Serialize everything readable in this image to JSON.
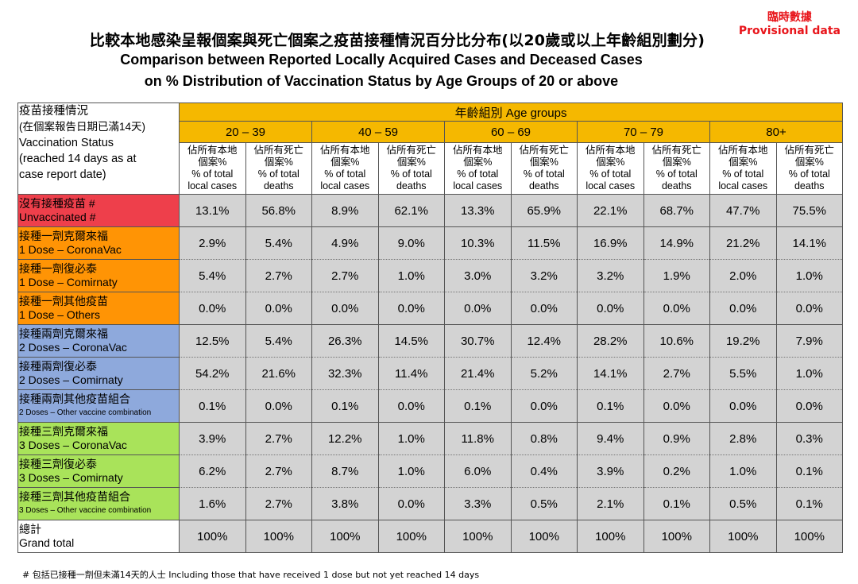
{
  "provisional": {
    "zh": "臨時數據",
    "en": "Provisional data"
  },
  "title": {
    "zh": "比較本地感染呈報個案與死亡個案之疫苗接種情況百分比分布(以20歲或以上年齡組別劃分)",
    "en1": "Comparison between Reported Locally Acquired Cases and Deceased Cases",
    "en2": "on % Distribution of Vaccination Status by Age Groups of 20 or above"
  },
  "corner": {
    "zh1": "疫苗接種情況",
    "zh2": "(在個案報告日期已滿14天)",
    "en1": "Vaccination Status",
    "en2": "(reached 14 days as at",
    "en3": "case report date)"
  },
  "age_groups_label": "年齡組別 Age groups",
  "age_groups": [
    "20 – 39",
    "40 – 59",
    "60 – 69",
    "70 – 79",
    "80+"
  ],
  "subheaders": {
    "cases": {
      "zh1": "佔所有本地",
      "zh2": "個案%",
      "en1": "% of total",
      "en2": "local cases"
    },
    "deaths": {
      "zh1": "佔所有死亡",
      "zh2": "個案%",
      "en1": "% of total",
      "en2": "deaths"
    }
  },
  "rows": [
    {
      "zh": "沒有接種疫苗 #",
      "en": "Unvaccinated #",
      "values": [
        "13.1%",
        "56.8%",
        "8.9%",
        "62.1%",
        "13.3%",
        "65.9%",
        "22.1%",
        "68.7%",
        "47.7%",
        "75.5%"
      ]
    },
    {
      "zh": "接種一劑克爾來福",
      "en": "1 Dose – CoronaVac",
      "values": [
        "2.9%",
        "5.4%",
        "4.9%",
        "9.0%",
        "10.3%",
        "11.5%",
        "16.9%",
        "14.9%",
        "21.2%",
        "14.1%"
      ]
    },
    {
      "zh": "接種一劑復必泰",
      "en": "1 Dose – Comirnaty",
      "values": [
        "5.4%",
        "2.7%",
        "2.7%",
        "1.0%",
        "3.0%",
        "3.2%",
        "3.2%",
        "1.9%",
        "2.0%",
        "1.0%"
      ]
    },
    {
      "zh": "接種一劑其他疫苗",
      "en": "1 Dose – Others",
      "values": [
        "0.0%",
        "0.0%",
        "0.0%",
        "0.0%",
        "0.0%",
        "0.0%",
        "0.0%",
        "0.0%",
        "0.0%",
        "0.0%"
      ]
    },
    {
      "zh": "接種兩劑克爾來福",
      "en": "2 Doses – CoronaVac",
      "values": [
        "12.5%",
        "5.4%",
        "26.3%",
        "14.5%",
        "30.7%",
        "12.4%",
        "28.2%",
        "10.6%",
        "19.2%",
        "7.9%"
      ]
    },
    {
      "zh": "接種兩劑復必泰",
      "en": "2 Doses – Comirnaty",
      "values": [
        "54.2%",
        "21.6%",
        "32.3%",
        "11.4%",
        "21.4%",
        "5.2%",
        "14.1%",
        "2.7%",
        "5.5%",
        "1.0%"
      ]
    },
    {
      "zh": "接種兩劑其他疫苗組合",
      "en": "2 Doses – Other vaccine combination",
      "values": [
        "0.1%",
        "0.0%",
        "0.1%",
        "0.0%",
        "0.1%",
        "0.0%",
        "0.1%",
        "0.0%",
        "0.0%",
        "0.0%"
      ]
    },
    {
      "zh": "接種三劑克爾來福",
      "en": "3 Doses – CoronaVac",
      "values": [
        "3.9%",
        "2.7%",
        "12.2%",
        "1.0%",
        "11.8%",
        "0.8%",
        "9.4%",
        "0.9%",
        "2.8%",
        "0.3%"
      ]
    },
    {
      "zh": "接種三劑復必泰",
      "en": "3 Doses – Comirnaty",
      "values": [
        "6.2%",
        "2.7%",
        "8.7%",
        "1.0%",
        "6.0%",
        "0.4%",
        "3.9%",
        "0.2%",
        "1.0%",
        "0.1%"
      ]
    },
    {
      "zh": "接種三劑其他疫苗組合",
      "en": "3 Doses – Other vaccine combination",
      "values": [
        "1.6%",
        "2.7%",
        "3.8%",
        "0.0%",
        "3.3%",
        "0.5%",
        "2.1%",
        "0.1%",
        "0.5%",
        "0.1%"
      ]
    },
    {
      "zh": "總計",
      "en": "Grand total",
      "values": [
        "100%",
        "100%",
        "100%",
        "100%",
        "100%",
        "100%",
        "100%",
        "100%",
        "100%",
        "100%"
      ]
    }
  ],
  "colors": {
    "header": "#f5b800",
    "unvaccinated": "#ee3f4b",
    "one_dose": "#ff9405",
    "two_doses": "#8ea9dc",
    "three_doses": "#a9e35a",
    "values_bg": "#d3d3d3",
    "provisional": "#e8141a"
  },
  "footnote": "# 包括已接種一劑但未滿14天的人士  Including those that have received 1 dose but not yet reached 14 days"
}
